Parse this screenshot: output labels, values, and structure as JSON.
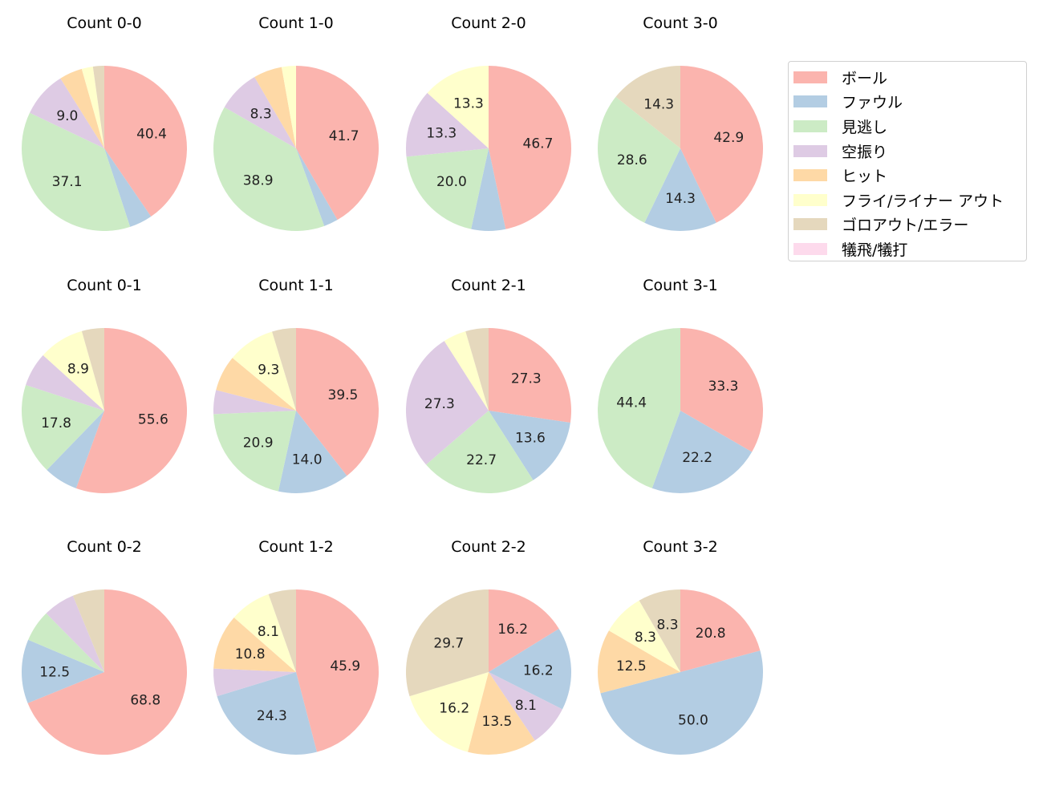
{
  "chart_data": {
    "type": "pie",
    "categories": [
      "ボール",
      "ファウル",
      "見逃し",
      "空振り",
      "ヒット",
      "フライ/ライナー アウト",
      "ゴロアウト/エラー",
      "犠飛/犠打"
    ],
    "colors": [
      "#fbb4ae",
      "#b3cde3",
      "#ccebc5",
      "#decbe4",
      "#fed9a6",
      "#ffffcc",
      "#e5d8bd",
      "#fddaec"
    ],
    "legend_placement": "top-right",
    "label_threshold_percent": 8,
    "pies": [
      {
        "title": "Count 0-0",
        "values": [
          40.4,
          4.5,
          37.1,
          9.0,
          4.5,
          2.2,
          2.2,
          0
        ]
      },
      {
        "title": "Count 1-0",
        "values": [
          41.7,
          2.8,
          38.9,
          8.3,
          5.6,
          2.8,
          0,
          0
        ]
      },
      {
        "title": "Count 2-0",
        "values": [
          46.7,
          6.7,
          20.0,
          13.3,
          0,
          13.3,
          0,
          0
        ]
      },
      {
        "title": "Count 3-0",
        "values": [
          42.9,
          14.3,
          28.6,
          0,
          0,
          0,
          14.3,
          0
        ]
      },
      {
        "title": "Count 0-1",
        "values": [
          55.6,
          6.7,
          17.8,
          6.7,
          0,
          8.9,
          4.4,
          0
        ]
      },
      {
        "title": "Count 1-1",
        "values": [
          39.5,
          14.0,
          20.9,
          4.7,
          7.0,
          9.3,
          4.7,
          0
        ]
      },
      {
        "title": "Count 2-1",
        "values": [
          27.3,
          13.6,
          22.7,
          27.3,
          0,
          4.5,
          4.5,
          0
        ]
      },
      {
        "title": "Count 3-1",
        "values": [
          33.3,
          22.2,
          44.4,
          0,
          0,
          0,
          0,
          0
        ]
      },
      {
        "title": "Count 0-2",
        "values": [
          68.8,
          12.5,
          6.2,
          6.2,
          0,
          0,
          6.2,
          0
        ]
      },
      {
        "title": "Count 1-2",
        "values": [
          45.9,
          24.3,
          0,
          5.4,
          10.8,
          8.1,
          5.4,
          0
        ]
      },
      {
        "title": "Count 2-2",
        "values": [
          16.2,
          16.2,
          0,
          8.1,
          13.5,
          16.2,
          29.7,
          0
        ]
      },
      {
        "title": "Count 3-2",
        "values": [
          20.8,
          50.0,
          0,
          0,
          12.5,
          8.3,
          8.3,
          0
        ]
      }
    ]
  }
}
